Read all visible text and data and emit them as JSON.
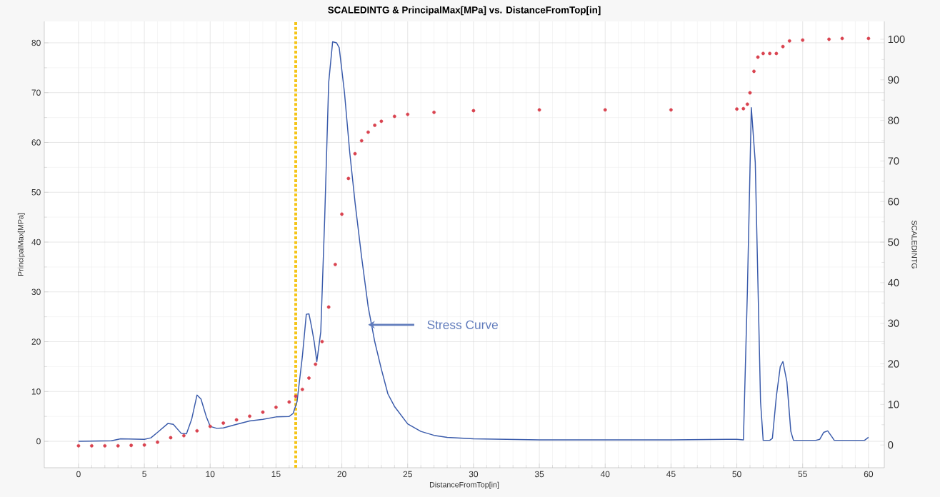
{
  "chart_data": {
    "type": "line",
    "title": "SCALEDINTG & PrincipalMax[MPa] vs. DistanceFromTop[in]",
    "xlabel": "DistanceFromTop[in]",
    "ylabel": "PrincipalMax[MPa]",
    "y2label": "SCALEDINTG",
    "xlim": [
      -2.6,
      61.2
    ],
    "ylim": [
      -5.3,
      84.3
    ],
    "y2lim": [
      -5.6,
      104.4
    ],
    "xticks": [
      0,
      5,
      10,
      15,
      20,
      25,
      30,
      35,
      40,
      45,
      50,
      55,
      60
    ],
    "yticks": [
      0,
      10,
      20,
      30,
      40,
      50,
      60,
      70,
      80
    ],
    "y2ticks": [
      0,
      10,
      20,
      30,
      40,
      50,
      60,
      70,
      80,
      90,
      100
    ],
    "grid": true,
    "series": [
      {
        "color": "#3a5bab",
        "line_style": "solid",
        "marker": "none",
        "x": [
          0,
          2.5,
          3.2,
          5,
          5.5,
          6,
          6.8,
          7.2,
          7.8,
          8.2,
          8.6,
          9,
          9.3,
          9.7,
          10,
          10.5,
          11,
          12,
          13,
          14,
          15,
          16,
          16.3,
          16.6,
          17,
          17.3,
          17.5,
          17.7,
          17.9,
          18.1,
          18.4,
          18.7,
          19,
          19.3,
          19.6,
          19.8,
          20.2,
          20.6,
          21,
          21.5,
          22,
          22.5,
          23,
          23.5,
          24,
          25,
          26,
          27,
          28,
          30,
          35,
          40,
          45,
          50,
          50.5,
          50.8,
          51.1,
          51.4,
          51.8,
          52,
          52.5,
          52.7,
          53,
          53.3,
          53.5,
          53.8,
          54.1,
          54.3,
          56,
          56.3,
          56.6,
          56.9,
          57.2,
          57.4,
          59.7,
          60
        ],
        "values": [
          0,
          0.1,
          0.5,
          0.4,
          0.7,
          1.8,
          3.6,
          3.4,
          1.6,
          1.5,
          4.5,
          9.3,
          8.5,
          5,
          3,
          2.6,
          2.7,
          3.4,
          4.1,
          4.4,
          4.9,
          5,
          5.6,
          8,
          17,
          25.5,
          25.6,
          23,
          20,
          16,
          22,
          45,
          72,
          80.2,
          80,
          79,
          70,
          58,
          48,
          37,
          27,
          20,
          14.5,
          9.5,
          7,
          3.5,
          2,
          1.2,
          0.8,
          0.5,
          0.3,
          0.3,
          0.3,
          0.4,
          0.3,
          30,
          67,
          56,
          8,
          0.2,
          0.2,
          0.6,
          9,
          15,
          16,
          12,
          2,
          0.2,
          0.2,
          0.4,
          1.8,
          2.1,
          1,
          0.2,
          0.2,
          0.8
        ]
      },
      {
        "type": "scatter",
        "axis": "y2",
        "color": "#d9434f",
        "marker": "circle",
        "x": [
          0,
          1,
          2,
          3,
          4,
          5,
          6,
          7,
          8,
          9,
          10,
          11,
          12,
          13,
          14,
          15,
          16,
          16.5,
          17,
          17.5,
          18,
          18.5,
          19,
          19.5,
          20,
          20.5,
          21,
          21.5,
          22,
          22.5,
          23,
          24,
          25,
          27,
          30,
          35,
          40,
          45,
          50,
          50.5,
          50.8,
          51,
          51.3,
          51.6,
          52,
          52.5,
          53,
          53.5,
          54,
          55,
          57,
          58,
          60
        ],
        "values": [
          -0.2,
          -0.2,
          -0.2,
          -0.2,
          -0.1,
          0,
          0.7,
          1.8,
          2.3,
          3.5,
          4.6,
          5.4,
          6.2,
          7.1,
          8.1,
          9.3,
          10.6,
          12,
          13.7,
          16.5,
          19.9,
          25.5,
          34,
          44.5,
          56.9,
          65.7,
          71.8,
          75,
          77.1,
          78.8,
          79.8,
          81,
          81.5,
          82,
          82.4,
          82.6,
          82.6,
          82.6,
          82.8,
          82.9,
          84,
          86.8,
          92.1,
          95.6,
          96.5,
          96.5,
          96.5,
          98.2,
          99.6,
          99.8,
          100,
          100.2,
          100.2
        ]
      }
    ],
    "ref_lines": [
      {
        "axis": "x",
        "value": 16.5,
        "color": "#f5c518",
        "line_style": "dotted"
      }
    ],
    "annotations": [
      {
        "text": "Stress Curve",
        "x": 22,
        "y": 23.4
      }
    ]
  }
}
